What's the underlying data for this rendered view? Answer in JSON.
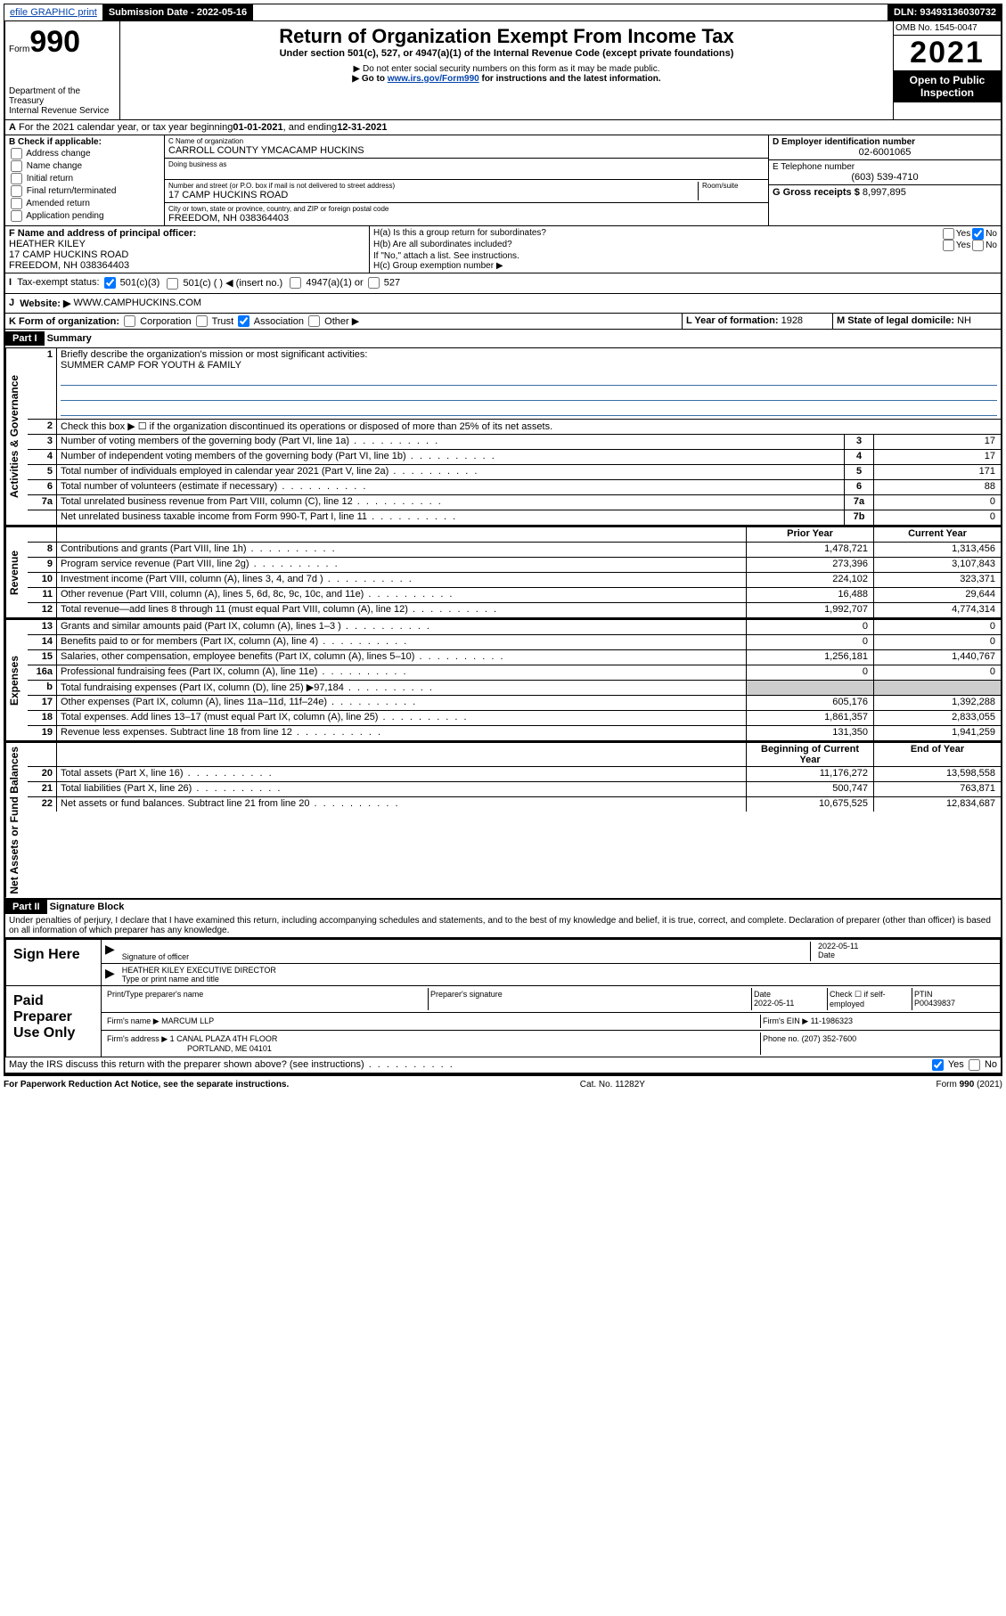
{
  "topbar": {
    "efile": "efile GRAPHIC print",
    "submission_label": "Submission Date - 2022-05-16",
    "dln_label": "DLN: 93493136030732"
  },
  "header": {
    "form_label": "Form",
    "form_number": "990",
    "dept": "Department of the Treasury",
    "irs": "Internal Revenue Service",
    "title": "Return of Organization Exempt From Income Tax",
    "subtitle": "Under section 501(c), 527, or 4947(a)(1) of the Internal Revenue Code (except private foundations)",
    "note1": "▶ Do not enter social security numbers on this form as it may be made public.",
    "note2_pre": "▶ Go to ",
    "note2_link": "www.irs.gov/Form990",
    "note2_post": " for instructions and the latest information.",
    "omb": "OMB No. 1545-0047",
    "year": "2021",
    "open": "Open to Public Inspection"
  },
  "periodA": {
    "text_pre": "For the 2021 calendar year, or tax year beginning ",
    "begin": "01-01-2021",
    "mid": " , and ending ",
    "end": "12-31-2021"
  },
  "sectionB": {
    "title": "B Check if applicable:",
    "items": [
      "Address change",
      "Name change",
      "Initial return",
      "Final return/terminated",
      "Amended return",
      "Application pending"
    ]
  },
  "sectionC": {
    "name_label": "C Name of organization",
    "name": "CARROLL COUNTY YMCACAMP HUCKINS",
    "dba_label": "Doing business as",
    "addr_label": "Number and street (or P.O. box if mail is not delivered to street address)",
    "room_label": "Room/suite",
    "addr": "17 CAMP HUCKINS ROAD",
    "city_label": "City or town, state or province, country, and ZIP or foreign postal code",
    "city": "FREEDOM, NH  038364403"
  },
  "sectionD": {
    "label": "D Employer identification number",
    "value": "02-6001065"
  },
  "sectionE": {
    "label": "E Telephone number",
    "value": "(603) 539-4710"
  },
  "sectionG": {
    "label": "G Gross receipts $",
    "value": "8,997,895"
  },
  "sectionF": {
    "label": "F Name and address of principal officer:",
    "name": "HEATHER KILEY",
    "addr1": "17 CAMP HUCKINS ROAD",
    "addr2": "FREEDOM, NH  038364403"
  },
  "sectionH": {
    "a_label": "H(a)  Is this a group return for subordinates?",
    "yes": "Yes",
    "no": "No",
    "b_label": "H(b)  Are all subordinates included?",
    "b_note": "If \"No,\" attach a list. See instructions.",
    "c_label": "H(c)  Group exemption number ▶"
  },
  "sectionI": {
    "label": "Tax-exempt status:",
    "opt1": "501(c)(3)",
    "opt2": "501(c) (  ) ◀ (insert no.)",
    "opt3": "4947(a)(1) or",
    "opt4": "527"
  },
  "sectionJ": {
    "label": "Website: ▶",
    "value": "WWW.CAMPHUCKINS.COM"
  },
  "sectionK": {
    "label": "K Form of organization:",
    "opts": [
      "Corporation",
      "Trust",
      "Association",
      "Other ▶"
    ]
  },
  "sectionL": {
    "label": "L Year of formation:",
    "value": "1928"
  },
  "sectionM": {
    "label": "M State of legal domicile:",
    "value": "NH"
  },
  "part1": {
    "header": "Part I",
    "title": "Summary",
    "line1_label": "Briefly describe the organization's mission or most significant activities:",
    "line1_text": "SUMMER CAMP FOR YOUTH & FAMILY",
    "line2": "Check this box ▶ ☐  if the organization discontinued its operations or disposed of more than 25% of its net assets.",
    "vlabels": {
      "gov": "Activities & Governance",
      "rev": "Revenue",
      "exp": "Expenses",
      "net": "Net Assets or Fund Balances"
    },
    "gov_lines": [
      {
        "n": "3",
        "d": "Number of voting members of the governing body (Part VI, line 1a)",
        "b": "3",
        "v": "17"
      },
      {
        "n": "4",
        "d": "Number of independent voting members of the governing body (Part VI, line 1b)",
        "b": "4",
        "v": "17"
      },
      {
        "n": "5",
        "d": "Total number of individuals employed in calendar year 2021 (Part V, line 2a)",
        "b": "5",
        "v": "171"
      },
      {
        "n": "6",
        "d": "Total number of volunteers (estimate if necessary)",
        "b": "6",
        "v": "88"
      },
      {
        "n": "7a",
        "d": "Total unrelated business revenue from Part VIII, column (C), line 12",
        "b": "7a",
        "v": "0"
      },
      {
        "n": "",
        "d": "Net unrelated business taxable income from Form 990-T, Part I, line 11",
        "b": "7b",
        "v": "0"
      }
    ],
    "col_prior": "Prior Year",
    "col_current": "Current Year",
    "col_boy": "Beginning of Current Year",
    "col_eoy": "End of Year",
    "rev_lines": [
      {
        "n": "8",
        "d": "Contributions and grants (Part VIII, line 1h)",
        "p": "1,478,721",
        "c": "1,313,456"
      },
      {
        "n": "9",
        "d": "Program service revenue (Part VIII, line 2g)",
        "p": "273,396",
        "c": "3,107,843"
      },
      {
        "n": "10",
        "d": "Investment income (Part VIII, column (A), lines 3, 4, and 7d )",
        "p": "224,102",
        "c": "323,371"
      },
      {
        "n": "11",
        "d": "Other revenue (Part VIII, column (A), lines 5, 6d, 8c, 9c, 10c, and 11e)",
        "p": "16,488",
        "c": "29,644"
      },
      {
        "n": "12",
        "d": "Total revenue—add lines 8 through 11 (must equal Part VIII, column (A), line 12)",
        "p": "1,992,707",
        "c": "4,774,314"
      }
    ],
    "exp_lines": [
      {
        "n": "13",
        "d": "Grants and similar amounts paid (Part IX, column (A), lines 1–3 )",
        "p": "0",
        "c": "0"
      },
      {
        "n": "14",
        "d": "Benefits paid to or for members (Part IX, column (A), line 4)",
        "p": "0",
        "c": "0"
      },
      {
        "n": "15",
        "d": "Salaries, other compensation, employee benefits (Part IX, column (A), lines 5–10)",
        "p": "1,256,181",
        "c": "1,440,767"
      },
      {
        "n": "16a",
        "d": "Professional fundraising fees (Part IX, column (A), line 11e)",
        "p": "0",
        "c": "0"
      },
      {
        "n": "b",
        "d": "Total fundraising expenses (Part IX, column (D), line 25) ▶97,184",
        "p": "",
        "c": ""
      },
      {
        "n": "17",
        "d": "Other expenses (Part IX, column (A), lines 11a–11d, 11f–24e)",
        "p": "605,176",
        "c": "1,392,288"
      },
      {
        "n": "18",
        "d": "Total expenses. Add lines 13–17 (must equal Part IX, column (A), line 25)",
        "p": "1,861,357",
        "c": "2,833,055"
      },
      {
        "n": "19",
        "d": "Revenue less expenses. Subtract line 18 from line 12",
        "p": "131,350",
        "c": "1,941,259"
      }
    ],
    "net_lines": [
      {
        "n": "20",
        "d": "Total assets (Part X, line 16)",
        "p": "11,176,272",
        "c": "13,598,558"
      },
      {
        "n": "21",
        "d": "Total liabilities (Part X, line 26)",
        "p": "500,747",
        "c": "763,871"
      },
      {
        "n": "22",
        "d": "Net assets or fund balances. Subtract line 21 from line 20",
        "p": "10,675,525",
        "c": "12,834,687"
      }
    ]
  },
  "part2": {
    "header": "Part II",
    "title": "Signature Block",
    "penalty": "Under penalties of perjury, I declare that I have examined this return, including accompanying schedules and statements, and to the best of my knowledge and belief, it is true, correct, and complete. Declaration of preparer (other than officer) is based on all information of which preparer has any knowledge."
  },
  "sign": {
    "left": "Sign Here",
    "sig_label": "Signature of officer",
    "date": "2022-05-11",
    "date_label": "Date",
    "name": "HEATHER KILEY EXECUTIVE DIRECTOR",
    "name_label": "Type or print name and title"
  },
  "paid": {
    "left": "Paid Preparer Use Only",
    "h_name": "Print/Type preparer's name",
    "h_sig": "Preparer's signature",
    "h_date": "Date",
    "date": "2022-05-11",
    "h_check": "Check ☐ if self-employed",
    "h_ptin": "PTIN",
    "ptin": "P00439837",
    "firm_label": "Firm's name    ▶",
    "firm": "MARCUM LLP",
    "ein_label": "Firm's EIN ▶",
    "ein": "11-1986323",
    "addr_label": "Firm's address ▶",
    "addr1": "1 CANAL PLAZA 4TH FLOOR",
    "addr2": "PORTLAND, ME  04101",
    "phone_label": "Phone no.",
    "phone": "(207) 352-7600"
  },
  "discuss": {
    "text": "May the IRS discuss this return with the preparer shown above? (see instructions)",
    "yes": "Yes",
    "no": "No"
  },
  "footer": {
    "left": "For Paperwork Reduction Act Notice, see the separate instructions.",
    "mid": "Cat. No. 11282Y",
    "right": "Form 990 (2021)"
  }
}
